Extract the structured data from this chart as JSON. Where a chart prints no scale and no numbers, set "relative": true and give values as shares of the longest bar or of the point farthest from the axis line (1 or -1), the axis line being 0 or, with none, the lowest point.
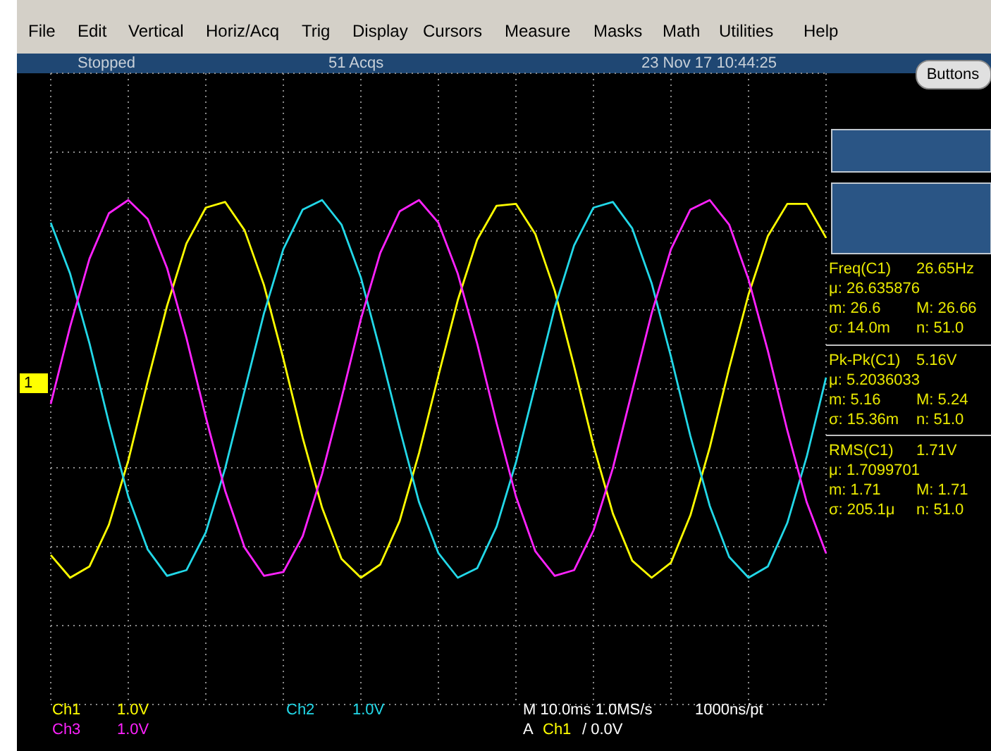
{
  "chart_data": {
    "type": "line",
    "relative": true,
    "grid": true,
    "legend": "bottom left",
    "marker": "none",
    "line_style": "solid",
    "categories": [
      null,
      null,
      null,
      null,
      null,
      null,
      null,
      null,
      null,
      null,
      null,
      null,
      null,
      null,
      null,
      null,
      null,
      null,
      null,
      null,
      null,
      null,
      null,
      null,
      null,
      null,
      null,
      null,
      null,
      null,
      null,
      null,
      null,
      null,
      null,
      null,
      null,
      null,
      null,
      null,
      null
    ],
    "series": [
      {
        "name": "Ch1",
        "color": "#ffff00",
        "values": [
          -0.88,
          -1.0,
          -0.94,
          -0.72,
          -0.38,
          0.04,
          0.44,
          0.77,
          0.96,
          0.99,
          0.84,
          0.55,
          0.16,
          -0.26,
          -0.63,
          -0.9,
          -1.0,
          -0.93,
          -0.7,
          -0.34,
          0.07,
          0.47,
          0.79,
          0.97,
          0.98,
          0.82,
          0.52,
          0.12,
          -0.3,
          -0.66,
          -0.91,
          -1.0,
          -0.92,
          -0.67,
          -0.31,
          0.11,
          0.5,
          0.81,
          0.98,
          0.98,
          0.8
        ]
      },
      {
        "name": "Ch2",
        "color": "#22d8e8",
        "values": [
          0.88,
          0.61,
          0.24,
          -0.18,
          -0.57,
          -0.85,
          -0.99,
          -0.96,
          -0.76,
          -0.42,
          -0.01,
          0.4,
          0.74,
          0.95,
          1.0,
          0.87,
          0.59,
          0.2,
          -0.21,
          -0.6,
          -0.87,
          -1.0,
          -0.95,
          -0.73,
          -0.39,
          0.02,
          0.43,
          0.76,
          0.96,
          0.99,
          0.85,
          0.56,
          0.17,
          -0.25,
          -0.62,
          -0.89,
          -1.0,
          -0.94,
          -0.71,
          -0.36,
          0.06
        ]
      },
      {
        "name": "Ch3",
        "color": "#ff22ff",
        "values": [
          -0.08,
          0.33,
          0.69,
          0.93,
          1.0,
          0.9,
          0.64,
          0.27,
          -0.15,
          -0.54,
          -0.84,
          -0.99,
          -0.97,
          -0.78,
          -0.45,
          -0.05,
          0.37,
          0.72,
          0.94,
          1.0,
          0.88,
          0.61,
          0.24,
          -0.18,
          -0.57,
          -0.86,
          -0.99,
          -0.96,
          -0.75,
          -0.42,
          -0.01,
          0.4,
          0.74,
          0.95,
          1.0,
          0.87,
          0.58,
          0.2,
          -0.22,
          -0.6,
          -0.87
        ]
      }
    ],
    "annotations": [
      "File",
      "Edit",
      "Vertical",
      "Horiz/Acq",
      "Trig",
      "Display",
      "Cursors",
      "Measure",
      "Masks",
      "Math",
      "Utilities",
      "Help",
      "Stopped",
      "51 Acqs",
      "23 Nov 17 10:44:25",
      "Buttons",
      "Freq(C1)",
      "26.65Hz",
      "μ: 26.635876",
      "m: 26.6",
      "M: 26.66",
      "σ: 14.0m",
      "n: 51.0",
      "Pk-Pk(C1)",
      "5.16V",
      "μ: 5.2036033",
      "m: 5.16",
      "M: 5.24",
      "σ: 15.36m",
      "n: 51.0",
      "RMS(C1)",
      "1.71V",
      "μ: 1.7099701",
      "m: 1.71",
      "M: 1.71",
      "σ: 205.1μ",
      "n: 51.0",
      "1.0V",
      "1.0V",
      "1.0V",
      "M 10.0ms 1.0MS/s",
      "1000ns/pt",
      "A",
      "Ch1",
      "/ 0.0V",
      "1"
    ]
  }
}
